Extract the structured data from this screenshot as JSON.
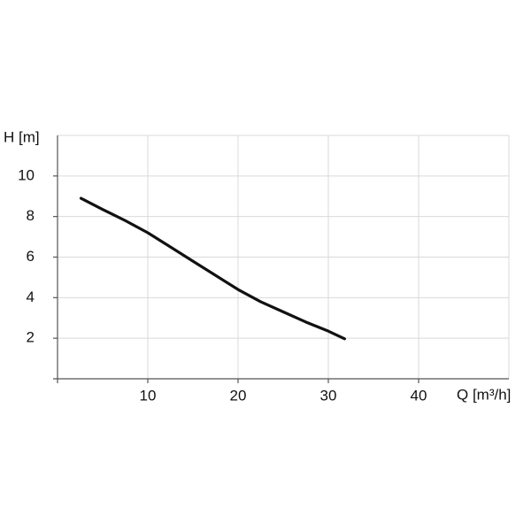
{
  "chart_data": {
    "type": "line",
    "y_label": "H [m]",
    "x_label": "Q [m³/h]",
    "x": [
      2.6,
      5,
      7.5,
      10,
      12.5,
      15,
      17.5,
      20,
      22.5,
      25,
      27.5,
      30,
      31.8
    ],
    "series": [
      {
        "color": "#111111",
        "values": [
          8.9,
          8.35,
          7.8,
          7.2,
          6.5,
          5.8,
          5.1,
          4.4,
          3.8,
          3.3,
          2.8,
          2.35,
          1.97
        ]
      }
    ],
    "xlim": [
      0,
      50
    ],
    "ylim": [
      0,
      12
    ],
    "xticks": [
      10,
      20,
      30,
      40
    ],
    "yticks": [
      2,
      4,
      6,
      8,
      10
    ],
    "grid": true
  }
}
